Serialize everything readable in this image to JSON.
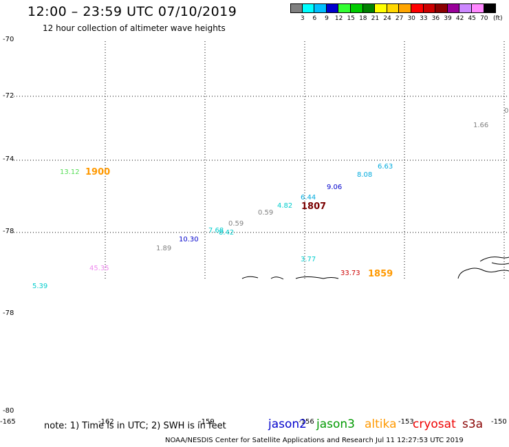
{
  "title": "12:00 – 23:59 UTC 07/10/2019",
  "subtitle": "12 hour collection of altimeter wave heights",
  "color_scale": {
    "colors": [
      "#808080",
      "#00ffff",
      "#00bfff",
      "#0000cd",
      "#33ff33",
      "#00cc00",
      "#008000",
      "#ffff00",
      "#ffd700",
      "#ffa500",
      "#ff0000",
      "#cc0000",
      "#8b0000",
      "#990099",
      "#cc88ff",
      "#ff88ff",
      "#000000"
    ],
    "labels": [
      "3",
      "6",
      "9",
      "12",
      "15",
      "18",
      "21",
      "24",
      "27",
      "30",
      "33",
      "36",
      "39",
      "42",
      "45",
      "70"
    ],
    "unit": "(ft)"
  },
  "lat_labels": [
    "-70",
    "-72",
    "-74",
    "-78",
    "-78",
    "-80"
  ],
  "lon_labels": [
    "-165",
    "-162",
    "-159",
    "-156",
    "-153",
    "-150"
  ],
  "observations": [
    {
      "value": "13.12",
      "color": "#55dd55"
    },
    {
      "value": "1.66",
      "color": "#808080"
    },
    {
      "value": "6.63",
      "color": "#00aadd"
    },
    {
      "value": "8.08",
      "color": "#00aadd"
    },
    {
      "value": "9.06",
      "color": "#0000cc"
    },
    {
      "value": "6.44",
      "color": "#00aadd"
    },
    {
      "value": "4.82",
      "color": "#00cccc"
    },
    {
      "value": "0.59",
      "color": "#808080"
    },
    {
      "value": "0.59",
      "color": "#808080"
    },
    {
      "value": "7.68",
      "color": "#00cccc"
    },
    {
      "value": "8.42",
      "color": "#00cccc"
    },
    {
      "value": "10.30",
      "color": "#0000cc"
    },
    {
      "value": "1.89",
      "color": "#808080"
    },
    {
      "value": "45.35",
      "color": "#ee88ee"
    },
    {
      "value": "5.39",
      "color": "#00cccc"
    },
    {
      "value": "3.77",
      "color": "#00cccc"
    },
    {
      "value": "33.73",
      "color": "#cc0000"
    },
    {
      "value": "0",
      "color": "#808080"
    }
  ],
  "pass_times": [
    {
      "time": "1900",
      "color": "#ff9900"
    },
    {
      "time": "1807",
      "color": "#7a0000"
    },
    {
      "time": "1859",
      "color": "#ff9900"
    }
  ],
  "note": "note: 1) Time is in UTC; 2) SWH is in feet",
  "satellites": [
    {
      "name": "jason2",
      "color": "#0000cc"
    },
    {
      "name": "jason3",
      "color": "#009900"
    },
    {
      "name": "altika",
      "color": "#ff9900"
    },
    {
      "name": "cryosat",
      "color": "#ee0000"
    },
    {
      "name": "s3a",
      "color": "#880000"
    }
  ],
  "footer": "NOAA/NESDIS Center for Satellite Applications and Research    Jul 11 12:27:53 UTC 2019"
}
